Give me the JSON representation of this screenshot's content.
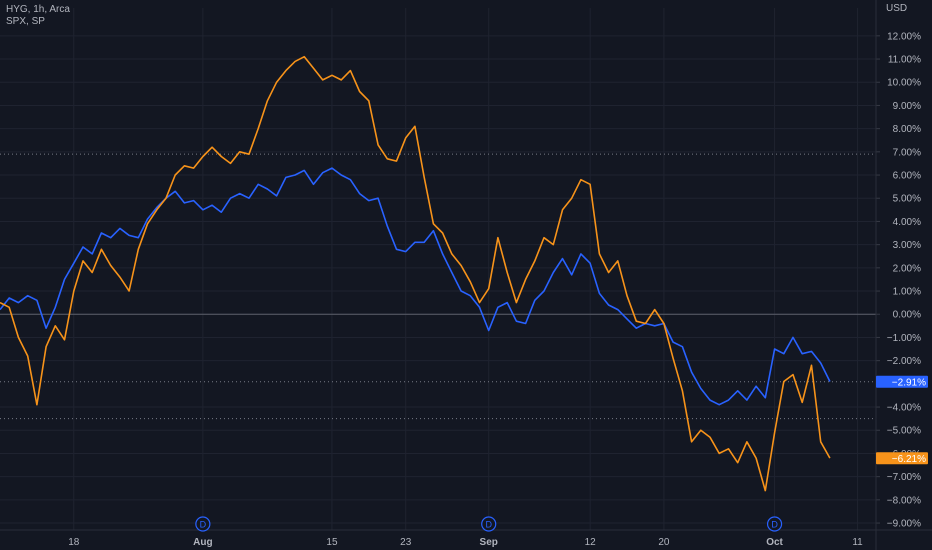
{
  "legend": {
    "series1": "HYG, 1h, Arca",
    "series2": "SPX, SP"
  },
  "axis": {
    "currency": "USD"
  },
  "colors": {
    "hyg": "#2962ff",
    "spx": "#f7931a",
    "background": "#131722",
    "grid": "#1f2330"
  },
  "event_markers": [
    {
      "label": "D",
      "x": "Aug"
    },
    {
      "label": "D",
      "x": "Sep"
    },
    {
      "label": "D",
      "x": "Oct"
    }
  ],
  "chart_data": {
    "type": "line",
    "x_ticks": [
      {
        "label": "18",
        "date": "2023-07-18"
      },
      {
        "label": "Aug",
        "date": "2023-08-01"
      },
      {
        "label": "15",
        "date": "2023-08-15"
      },
      {
        "label": "23",
        "date": "2023-08-23"
      },
      {
        "label": "Sep",
        "date": "2023-09-01"
      },
      {
        "label": "12",
        "date": "2023-09-12"
      },
      {
        "label": "20",
        "date": "2023-09-20"
      },
      {
        "label": "Oct",
        "date": "2023-10-02"
      },
      {
        "label": "11",
        "date": "2023-10-11"
      }
    ],
    "y_ticks": [
      "12.00%",
      "11.00%",
      "10.00%",
      "9.00%",
      "8.00%",
      "7.00%",
      "6.00%",
      "5.00%",
      "4.00%",
      "3.00%",
      "2.00%",
      "1.00%",
      "0.00%",
      "−1.00%",
      "−2.00%",
      "−4.00%",
      "−5.00%",
      "−6.00%",
      "−7.00%",
      "−8.00%",
      "−9.00%"
    ],
    "ylim": [
      -9.3,
      13.2
    ],
    "series": [
      {
        "name": "HYG",
        "color": "#2962ff",
        "last_label": "−2.91%",
        "points": [
          [
            "2023-07-10",
            0.2
          ],
          [
            "2023-07-11",
            0.7
          ],
          [
            "2023-07-12",
            0.5
          ],
          [
            "2023-07-13",
            0.8
          ],
          [
            "2023-07-14",
            0.6
          ],
          [
            "2023-07-15",
            -0.6
          ],
          [
            "2023-07-16",
            0.3
          ],
          [
            "2023-07-17",
            1.5
          ],
          [
            "2023-07-18",
            2.2
          ],
          [
            "2023-07-19",
            2.9
          ],
          [
            "2023-07-20",
            2.6
          ],
          [
            "2023-07-21",
            3.5
          ],
          [
            "2023-07-22",
            3.3
          ],
          [
            "2023-07-23",
            3.7
          ],
          [
            "2023-07-24",
            3.4
          ],
          [
            "2023-07-25",
            3.3
          ],
          [
            "2023-07-26",
            4.1
          ],
          [
            "2023-07-27",
            4.6
          ],
          [
            "2023-07-28",
            5.0
          ],
          [
            "2023-07-29",
            5.3
          ],
          [
            "2023-07-30",
            4.8
          ],
          [
            "2023-07-31",
            4.9
          ],
          [
            "2023-08-01",
            4.5
          ],
          [
            "2023-08-02",
            4.7
          ],
          [
            "2023-08-03",
            4.4
          ],
          [
            "2023-08-04",
            5.0
          ],
          [
            "2023-08-05",
            5.2
          ],
          [
            "2023-08-06",
            5.0
          ],
          [
            "2023-08-07",
            5.6
          ],
          [
            "2023-08-08",
            5.4
          ],
          [
            "2023-08-09",
            5.1
          ],
          [
            "2023-08-10",
            5.9
          ],
          [
            "2023-08-11",
            6.0
          ],
          [
            "2023-08-12",
            6.2
          ],
          [
            "2023-08-13",
            5.6
          ],
          [
            "2023-08-14",
            6.1
          ],
          [
            "2023-08-15",
            6.3
          ],
          [
            "2023-08-16",
            6.0
          ],
          [
            "2023-08-17",
            5.8
          ],
          [
            "2023-08-18",
            5.2
          ],
          [
            "2023-08-19",
            4.9
          ],
          [
            "2023-08-20",
            5.0
          ],
          [
            "2023-08-21",
            3.8
          ],
          [
            "2023-08-22",
            2.8
          ],
          [
            "2023-08-23",
            2.7
          ],
          [
            "2023-08-24",
            3.1
          ],
          [
            "2023-08-25",
            3.1
          ],
          [
            "2023-08-26",
            3.6
          ],
          [
            "2023-08-27",
            2.6
          ],
          [
            "2023-08-28",
            1.8
          ],
          [
            "2023-08-29",
            1.0
          ],
          [
            "2023-08-30",
            0.8
          ],
          [
            "2023-08-31",
            0.3
          ],
          [
            "2023-09-01",
            -0.7
          ],
          [
            "2023-09-02",
            0.3
          ],
          [
            "2023-09-03",
            0.5
          ],
          [
            "2023-09-04",
            -0.3
          ],
          [
            "2023-09-05",
            -0.4
          ],
          [
            "2023-09-06",
            0.6
          ],
          [
            "2023-09-07",
            1.0
          ],
          [
            "2023-09-08",
            1.8
          ],
          [
            "2023-09-09",
            2.4
          ],
          [
            "2023-09-10",
            1.7
          ],
          [
            "2023-09-11",
            2.6
          ],
          [
            "2023-09-12",
            2.2
          ],
          [
            "2023-09-13",
            0.9
          ],
          [
            "2023-09-14",
            0.4
          ],
          [
            "2023-09-15",
            0.2
          ],
          [
            "2023-09-16",
            -0.2
          ],
          [
            "2023-09-17",
            -0.6
          ],
          [
            "2023-09-18",
            -0.4
          ],
          [
            "2023-09-19",
            -0.5
          ],
          [
            "2023-09-20",
            -0.4
          ],
          [
            "2023-09-21",
            -1.2
          ],
          [
            "2023-09-22",
            -1.4
          ],
          [
            "2023-09-23",
            -2.5
          ],
          [
            "2023-09-24",
            -3.2
          ],
          [
            "2023-09-25",
            -3.7
          ],
          [
            "2023-09-26",
            -3.9
          ],
          [
            "2023-09-27",
            -3.7
          ],
          [
            "2023-09-28",
            -3.3
          ],
          [
            "2023-09-29",
            -3.7
          ],
          [
            "2023-09-30",
            -3.1
          ],
          [
            "2023-10-01",
            -3.6
          ],
          [
            "2023-10-02",
            -1.5
          ],
          [
            "2023-10-03",
            -1.7
          ],
          [
            "2023-10-04",
            -1.0
          ],
          [
            "2023-10-05",
            -1.7
          ],
          [
            "2023-10-06",
            -1.6
          ],
          [
            "2023-10-07",
            -2.1
          ],
          [
            "2023-10-08",
            -2.9
          ]
        ]
      },
      {
        "name": "SPX",
        "color": "#f7931a",
        "last_label": "−6.21%",
        "points": [
          [
            "2023-07-10",
            0.5
          ],
          [
            "2023-07-11",
            0.3
          ],
          [
            "2023-07-12",
            -1.0
          ],
          [
            "2023-07-13",
            -1.8
          ],
          [
            "2023-07-14",
            -3.9
          ],
          [
            "2023-07-15",
            -1.4
          ],
          [
            "2023-07-16",
            -0.5
          ],
          [
            "2023-07-17",
            -1.1
          ],
          [
            "2023-07-18",
            1.0
          ],
          [
            "2023-07-19",
            2.3
          ],
          [
            "2023-07-20",
            1.8
          ],
          [
            "2023-07-21",
            2.8
          ],
          [
            "2023-07-22",
            2.1
          ],
          [
            "2023-07-23",
            1.6
          ],
          [
            "2023-07-24",
            1.0
          ],
          [
            "2023-07-25",
            2.8
          ],
          [
            "2023-07-26",
            3.9
          ],
          [
            "2023-07-27",
            4.5
          ],
          [
            "2023-07-28",
            5.0
          ],
          [
            "2023-07-29",
            6.0
          ],
          [
            "2023-07-30",
            6.4
          ],
          [
            "2023-07-31",
            6.3
          ],
          [
            "2023-08-01",
            6.8
          ],
          [
            "2023-08-02",
            7.2
          ],
          [
            "2023-08-03",
            6.8
          ],
          [
            "2023-08-04",
            6.5
          ],
          [
            "2023-08-05",
            7.0
          ],
          [
            "2023-08-06",
            6.9
          ],
          [
            "2023-08-07",
            8.0
          ],
          [
            "2023-08-08",
            9.2
          ],
          [
            "2023-08-09",
            10.0
          ],
          [
            "2023-08-10",
            10.5
          ],
          [
            "2023-08-11",
            10.9
          ],
          [
            "2023-08-12",
            11.1
          ],
          [
            "2023-08-13",
            10.6
          ],
          [
            "2023-08-14",
            10.1
          ],
          [
            "2023-08-15",
            10.3
          ],
          [
            "2023-08-16",
            10.1
          ],
          [
            "2023-08-17",
            10.5
          ],
          [
            "2023-08-18",
            9.6
          ],
          [
            "2023-08-19",
            9.2
          ],
          [
            "2023-08-20",
            7.3
          ],
          [
            "2023-08-21",
            6.7
          ],
          [
            "2023-08-22",
            6.6
          ],
          [
            "2023-08-23",
            7.6
          ],
          [
            "2023-08-24",
            8.1
          ],
          [
            "2023-08-25",
            5.9
          ],
          [
            "2023-08-26",
            3.9
          ],
          [
            "2023-08-27",
            3.5
          ],
          [
            "2023-08-28",
            2.6
          ],
          [
            "2023-08-29",
            2.1
          ],
          [
            "2023-08-30",
            1.4
          ],
          [
            "2023-08-31",
            0.5
          ],
          [
            "2023-09-01",
            1.1
          ],
          [
            "2023-09-02",
            3.3
          ],
          [
            "2023-09-03",
            1.8
          ],
          [
            "2023-09-04",
            0.5
          ],
          [
            "2023-09-05",
            1.5
          ],
          [
            "2023-09-06",
            2.3
          ],
          [
            "2023-09-07",
            3.3
          ],
          [
            "2023-09-08",
            3.0
          ],
          [
            "2023-09-09",
            4.5
          ],
          [
            "2023-09-10",
            5.0
          ],
          [
            "2023-09-11",
            5.8
          ],
          [
            "2023-09-12",
            5.6
          ],
          [
            "2023-09-13",
            2.6
          ],
          [
            "2023-09-14",
            1.8
          ],
          [
            "2023-09-15",
            2.3
          ],
          [
            "2023-09-16",
            0.8
          ],
          [
            "2023-09-17",
            -0.3
          ],
          [
            "2023-09-18",
            -0.4
          ],
          [
            "2023-09-19",
            0.2
          ],
          [
            "2023-09-20",
            -0.4
          ],
          [
            "2023-09-21",
            -1.9
          ],
          [
            "2023-09-22",
            -3.3
          ],
          [
            "2023-09-23",
            -5.5
          ],
          [
            "2023-09-24",
            -5.0
          ],
          [
            "2023-09-25",
            -5.3
          ],
          [
            "2023-09-26",
            -6.0
          ],
          [
            "2023-09-27",
            -5.8
          ],
          [
            "2023-09-28",
            -6.4
          ],
          [
            "2023-09-29",
            -5.5
          ],
          [
            "2023-09-30",
            -6.2
          ],
          [
            "2023-10-01",
            -7.6
          ],
          [
            "2023-10-02",
            -5.1
          ],
          [
            "2023-10-03",
            -2.9
          ],
          [
            "2023-10-04",
            -2.6
          ],
          [
            "2023-10-05",
            -3.8
          ],
          [
            "2023-10-06",
            -2.2
          ],
          [
            "2023-10-07",
            -5.5
          ],
          [
            "2023-10-08",
            -6.2
          ]
        ]
      }
    ],
    "reference_levels": [
      {
        "value": 0.0,
        "style": "solid"
      },
      {
        "value": 6.9,
        "style": "dotted"
      },
      {
        "value": -2.91,
        "style": "dotted"
      },
      {
        "value": -4.5,
        "style": "dotted"
      }
    ],
    "grid": true,
    "legend": "top-left"
  }
}
